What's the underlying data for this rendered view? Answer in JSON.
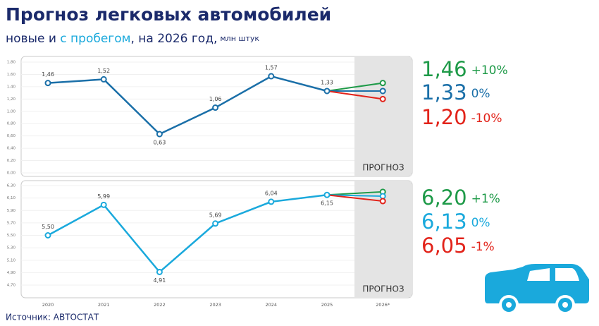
{
  "title": "Прогноз легковых автомобилей",
  "subtitle": {
    "new": "новые",
    "and": " и ",
    "used": "с пробегом",
    "year": ", на 2026 год,",
    "unit": "млн штук"
  },
  "source": "Источник: АВТОСТАТ",
  "chart_data": [
    {
      "type": "line",
      "color": "#1a6fa8",
      "grid": true,
      "values": [
        1.46,
        1.52,
        0.63,
        1.06,
        1.57,
        1.33,
        null
      ],
      "value_labels": [
        "1,46",
        "1,52",
        "0,63",
        "1,06",
        "1,57",
        "1,33",
        null
      ],
      "ylim": [
        0,
        1.8
      ],
      "yticks": [
        {
          "value": 0,
          "label": "0,00"
        },
        {
          "value": 0.2,
          "label": "0,20"
        },
        {
          "value": 0.4,
          "label": "0,40"
        },
        {
          "value": 0.6,
          "label": "0,60"
        },
        {
          "value": 0.8,
          "label": "0,80"
        },
        {
          "value": 1,
          "label": "1,00"
        },
        {
          "value": 1.2,
          "label": "1,20"
        },
        {
          "value": 1.4,
          "label": "1,40"
        },
        {
          "value": 1.6,
          "label": "1,60"
        },
        {
          "value": 1.8,
          "label": "1,80"
        }
      ],
      "annotation": "ПРОГНОЗ",
      "forecast": [
        {
          "color": "#1e9a48",
          "value": 1.46,
          "label": "1,46",
          "change": "+10%"
        },
        {
          "color": "#1a6fa8",
          "value": 1.33,
          "label": "1,33",
          "change": "0%"
        },
        {
          "color": "#e2231a",
          "value": 1.2,
          "label": "1,20",
          "change": "-10%"
        }
      ]
    },
    {
      "type": "line",
      "color": "#1aa9dc",
      "grid": true,
      "categories": [
        "2020",
        "2021",
        "2022",
        "2023",
        "2024",
        "2025",
        "2026*"
      ],
      "values": [
        5.5,
        5.99,
        4.91,
        5.69,
        6.04,
        6.15,
        null
      ],
      "value_labels": [
        "5,50",
        "5,99",
        "4,91",
        "5,69",
        "6,04",
        "6,15",
        null
      ],
      "ylim": [
        4.7,
        6.3
      ],
      "yticks": [
        {
          "value": 4.7,
          "label": "4,70"
        },
        {
          "value": 4.9,
          "label": "4,90"
        },
        {
          "value": 5.1,
          "label": "5,10"
        },
        {
          "value": 5.3,
          "label": "5,30"
        },
        {
          "value": 5.5,
          "label": "5,50"
        },
        {
          "value": 5.7,
          "label": "5,70"
        },
        {
          "value": 5.9,
          "label": "5,90"
        },
        {
          "value": 6.1,
          "label": "6,10"
        },
        {
          "value": 6.3,
          "label": "6,30"
        }
      ],
      "annotation": "ПРОГНОЗ",
      "forecast": [
        {
          "color": "#1e9a48",
          "value": 6.2,
          "label": "6,20",
          "change": "+1%"
        },
        {
          "color": "#1aa9dc",
          "value": 6.13,
          "label": "6,13",
          "change": "0%"
        },
        {
          "color": "#e2231a",
          "value": 6.05,
          "label": "6,05",
          "change": "-1%"
        }
      ]
    }
  ]
}
